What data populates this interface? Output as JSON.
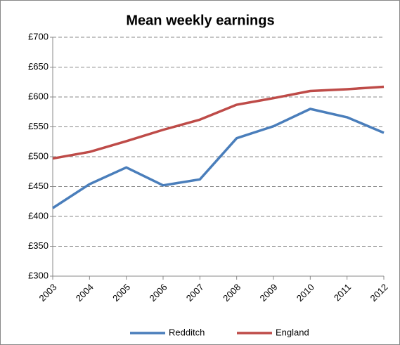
{
  "chart_data": {
    "type": "line",
    "title": "Mean weekly earnings",
    "categories": [
      "2003",
      "2004",
      "2005",
      "2006",
      "2007",
      "2008",
      "2009",
      "2010",
      "2011",
      "2012"
    ],
    "series": [
      {
        "name": "Redditch",
        "color": "#4a7ebb",
        "values": [
          414,
          454,
          482,
          452,
          462,
          531,
          551,
          580,
          566,
          540
        ]
      },
      {
        "name": "England",
        "color": "#be4b48",
        "values": [
          497,
          508,
          526,
          545,
          562,
          587,
          598,
          610,
          613,
          617
        ]
      }
    ],
    "ylim": [
      300,
      700
    ],
    "yticks": [
      {
        "value": 300,
        "label": "£300"
      },
      {
        "value": 350,
        "label": "£350"
      },
      {
        "value": 400,
        "label": "£400"
      },
      {
        "value": 450,
        "label": "£450"
      },
      {
        "value": 500,
        "label": "£500"
      },
      {
        "value": 550,
        "label": "£550"
      },
      {
        "value": 600,
        "label": "£600"
      },
      {
        "value": 650,
        "label": "£650"
      },
      {
        "value": 700,
        "label": "£700"
      }
    ],
    "grid": true,
    "legend": "bottom"
  }
}
